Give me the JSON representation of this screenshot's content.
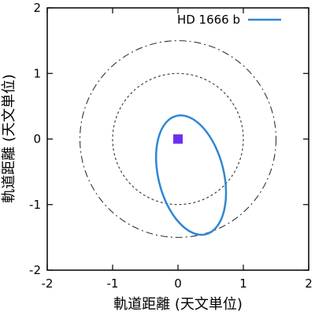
{
  "chart_data": {
    "type": "line",
    "xlabel": "軌道距離 (天文単位)",
    "ylabel": "軌道距離 (天文単位)",
    "xlim": [
      -2,
      2
    ],
    "ylim": [
      -2,
      2
    ],
    "xticks": [
      -2,
      -1,
      0,
      1,
      2
    ],
    "yticks": [
      -2,
      -1,
      0,
      1,
      2
    ],
    "x_tick_labels": [
      "-2",
      "-1",
      "0",
      "1",
      "2"
    ],
    "y_tick_labels": [
      "-2",
      "-1",
      "0",
      "1",
      "2"
    ],
    "grid": false,
    "legend_position": "top-right",
    "star": {
      "x": 0,
      "y": 0,
      "color": "#6b2ff2"
    },
    "series": [
      {
        "name": "HD 1666 b",
        "kind": "orbit-ellipse",
        "color": "#2f86d4",
        "center": [
          0.2,
          -0.55
        ],
        "semi_axes": [
          0.5,
          0.93
        ],
        "rotation_deg": 14
      }
    ],
    "reference_circles": [
      {
        "radius": 1.0,
        "style": "dotted",
        "color": "#333333"
      },
      {
        "radius": 1.5,
        "style": "dashed",
        "color": "#333333"
      }
    ]
  }
}
